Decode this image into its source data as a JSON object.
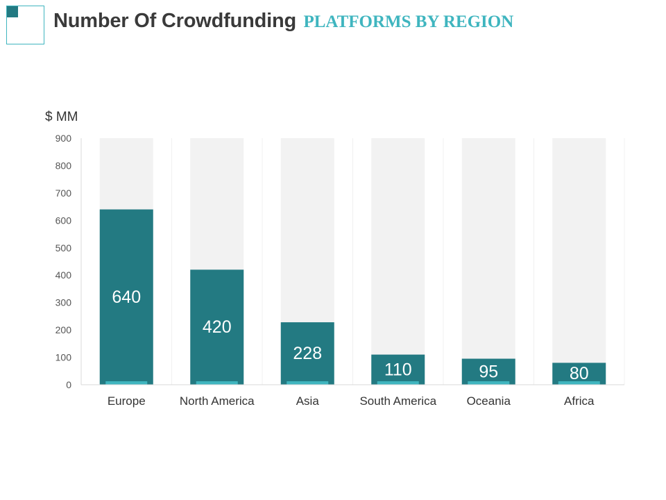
{
  "header": {
    "title_main": "Number Of Crowdfunding",
    "title_sub": "PLATFORMS BY REGION"
  },
  "colors": {
    "bar": "#237a82",
    "bar_background": "#f2f2f2",
    "accent": "#3fb5bf",
    "axis": "#d9d9d9"
  },
  "chart_data": {
    "type": "bar",
    "title": "Number Of Crowdfunding PLATFORMS BY REGION",
    "ylabel": "$  MM",
    "xlabel": "",
    "categories": [
      "Europe",
      "North America",
      "Asia",
      "South America",
      "Oceania",
      "Africa"
    ],
    "values": [
      640,
      420,
      228,
      110,
      95,
      80
    ],
    "ylim": [
      0,
      900
    ],
    "yticks": [
      0,
      100,
      200,
      300,
      400,
      500,
      600,
      700,
      800,
      900
    ],
    "data_labels": true,
    "grid": false
  }
}
